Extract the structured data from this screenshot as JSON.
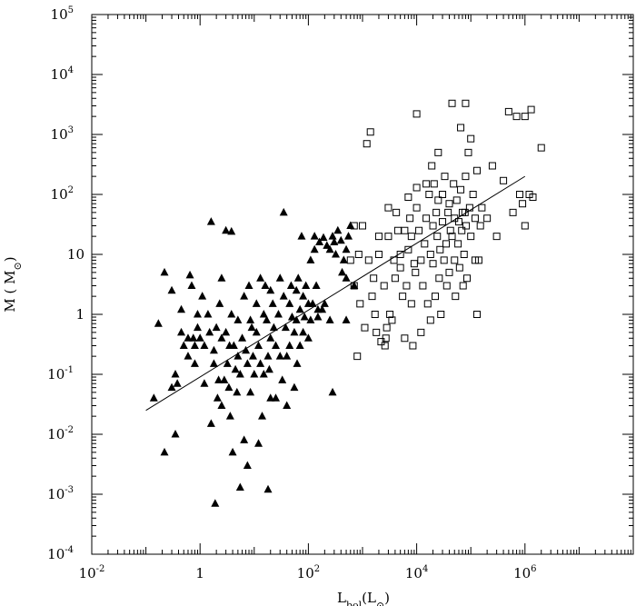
{
  "chart_data": {
    "type": "scatter",
    "title": "",
    "xlabel": "L_bol(L_⊙)",
    "ylabel": "M ( M_⊙)",
    "x_scale": "log",
    "y_scale": "log",
    "xlim": [
      0.01,
      100000000
    ],
    "ylim": [
      0.0001,
      100000
    ],
    "grid": false,
    "legend": "none",
    "x_tick_labels": [
      {
        "base": "10",
        "exp": "-2",
        "value": 0.01
      },
      {
        "base": "1",
        "exp": "",
        "value": 1
      },
      {
        "base": "10",
        "exp": "2",
        "value": 100
      },
      {
        "base": "10",
        "exp": "4",
        "value": 10000
      },
      {
        "base": "10",
        "exp": "6",
        "value": 1000000
      }
    ],
    "y_tick_labels": [
      {
        "base": "10",
        "exp": "-4",
        "value": 0.0001
      },
      {
        "base": "10",
        "exp": "-3",
        "value": 0.001
      },
      {
        "base": "10",
        "exp": "-2",
        "value": 0.01
      },
      {
        "base": "10",
        "exp": "-1",
        "value": 0.1
      },
      {
        "base": "1",
        "exp": "",
        "value": 1
      },
      {
        "base": "10",
        "exp": "",
        "value": 10
      },
      {
        "base": "10",
        "exp": "2",
        "value": 100
      },
      {
        "base": "10",
        "exp": "3",
        "value": 1000
      },
      {
        "base": "10",
        "exp": "4",
        "value": 10000
      },
      {
        "base": "10",
        "exp": "5",
        "value": 100000
      }
    ],
    "fit_line": {
      "x": [
        0.1,
        1000000
      ],
      "y": [
        0.025,
        200
      ]
    },
    "series": [
      {
        "marker": "filled-triangle",
        "color": "#000000",
        "points": [
          [
            0.14,
            0.04
          ],
          [
            0.17,
            0.7
          ],
          [
            0.22,
            5
          ],
          [
            0.22,
            0.005
          ],
          [
            0.3,
            0.06
          ],
          [
            0.3,
            2.5
          ],
          [
            0.35,
            0.1
          ],
          [
            0.35,
            0.01
          ],
          [
            0.38,
            0.07
          ],
          [
            0.45,
            1.2
          ],
          [
            0.45,
            0.5
          ],
          [
            0.5,
            0.3
          ],
          [
            0.6,
            0.4
          ],
          [
            0.6,
            0.2
          ],
          [
            0.65,
            4.5
          ],
          [
            0.7,
            3
          ],
          [
            0.75,
            0.4
          ],
          [
            0.8,
            0.3
          ],
          [
            0.8,
            0.15
          ],
          [
            0.9,
            1
          ],
          [
            0.9,
            0.6
          ],
          [
            1,
            0.4
          ],
          [
            1.1,
            2
          ],
          [
            1.2,
            0.3
          ],
          [
            1.2,
            0.07
          ],
          [
            1.4,
            1
          ],
          [
            1.5,
            0.5
          ],
          [
            1.6,
            35
          ],
          [
            1.6,
            0.015
          ],
          [
            1.8,
            0.25
          ],
          [
            1.8,
            0.15
          ],
          [
            1.9,
            0.0007
          ],
          [
            2,
            0.6
          ],
          [
            2.1,
            0.04
          ],
          [
            2.2,
            0.08
          ],
          [
            2.3,
            1.5
          ],
          [
            2.5,
            4
          ],
          [
            2.5,
            0.03
          ],
          [
            2.5,
            0.4
          ],
          [
            2.8,
            0.08
          ],
          [
            3,
            25
          ],
          [
            3,
            0.5
          ],
          [
            3.2,
            0.15
          ],
          [
            3.4,
            0.06
          ],
          [
            3.5,
            0.3
          ],
          [
            3.6,
            0.02
          ],
          [
            3.8,
            24
          ],
          [
            3.8,
            1
          ],
          [
            4,
            0.005
          ],
          [
            4.2,
            0.3
          ],
          [
            4.5,
            0.12
          ],
          [
            4.8,
            0.05
          ],
          [
            5,
            0.8
          ],
          [
            5,
            0.2
          ],
          [
            5.5,
            0.1
          ],
          [
            5.5,
            0.0013
          ],
          [
            6,
            0.4
          ],
          [
            6.5,
            2
          ],
          [
            6.5,
            0.008
          ],
          [
            7,
            0.25
          ],
          [
            7.5,
            0.003
          ],
          [
            7.5,
            0.15
          ],
          [
            8,
            3
          ],
          [
            8.5,
            0.8
          ],
          [
            8.5,
            0.05
          ],
          [
            9,
            0.6
          ],
          [
            9.5,
            0.2
          ],
          [
            10,
            0.1
          ],
          [
            11,
            0.5
          ],
          [
            11,
            1.5
          ],
          [
            12,
            0.3
          ],
          [
            12,
            0.007
          ],
          [
            13,
            4
          ],
          [
            13,
            0.15
          ],
          [
            14,
            0.02
          ],
          [
            15,
            1
          ],
          [
            15,
            0.1
          ],
          [
            16,
            3
          ],
          [
            17,
            0.8
          ],
          [
            18,
            0.2
          ],
          [
            18,
            0.0012
          ],
          [
            19,
            0.12
          ],
          [
            20,
            2.5
          ],
          [
            20,
            0.4
          ],
          [
            20,
            0.04
          ],
          [
            22,
            1.5
          ],
          [
            23,
            0.6
          ],
          [
            25,
            0.3
          ],
          [
            25,
            0.04
          ],
          [
            28,
            1
          ],
          [
            30,
            4
          ],
          [
            30,
            0.2
          ],
          [
            33,
            0.08
          ],
          [
            35,
            50
          ],
          [
            35,
            2
          ],
          [
            38,
            0.6
          ],
          [
            40,
            0.2
          ],
          [
            40,
            0.03
          ],
          [
            45,
            1.5
          ],
          [
            45,
            0.3
          ],
          [
            48,
            3
          ],
          [
            50,
            0.9
          ],
          [
            55,
            0.5
          ],
          [
            55,
            0.06
          ],
          [
            60,
            2.5
          ],
          [
            60,
            0.8
          ],
          [
            62,
            0.15
          ],
          [
            65,
            4
          ],
          [
            70,
            1.2
          ],
          [
            70,
            0.3
          ],
          [
            75,
            20
          ],
          [
            80,
            2
          ],
          [
            80,
            0.5
          ],
          [
            85,
            0.9
          ],
          [
            90,
            3
          ],
          [
            100,
            1.5
          ],
          [
            100,
            0.4
          ],
          [
            110,
            8
          ],
          [
            110,
            0.8
          ],
          [
            120,
            1.5
          ],
          [
            130,
            20
          ],
          [
            130,
            12
          ],
          [
            140,
            3
          ],
          [
            150,
            0.9
          ],
          [
            150,
            1.2
          ],
          [
            160,
            16
          ],
          [
            180,
            1.2
          ],
          [
            190,
            19
          ],
          [
            200,
            1.5
          ],
          [
            220,
            14
          ],
          [
            250,
            0.8
          ],
          [
            250,
            12
          ],
          [
            280,
            20
          ],
          [
            280,
            0.05
          ],
          [
            300,
            16
          ],
          [
            320,
            10
          ],
          [
            350,
            25
          ],
          [
            400,
            17
          ],
          [
            420,
            5
          ],
          [
            450,
            8
          ],
          [
            500,
            12
          ],
          [
            500,
            0.8
          ],
          [
            500,
            4
          ],
          [
            550,
            20
          ],
          [
            600,
            30
          ],
          [
            700,
            3
          ]
        ]
      },
      {
        "marker": "open-square",
        "color": "#000000",
        "points": [
          [
            600,
            8
          ],
          [
            700,
            30
          ],
          [
            700,
            3
          ],
          [
            800,
            0.2
          ],
          [
            850,
            10
          ],
          [
            900,
            1.5
          ],
          [
            1000,
            30
          ],
          [
            1100,
            0.6
          ],
          [
            1200,
            700
          ],
          [
            1300,
            8
          ],
          [
            1400,
            1100
          ],
          [
            1500,
            2
          ],
          [
            1600,
            4
          ],
          [
            1700,
            1
          ],
          [
            1800,
            0.5
          ],
          [
            2000,
            20
          ],
          [
            2000,
            10
          ],
          [
            2200,
            0.35
          ],
          [
            2500,
            3
          ],
          [
            2600,
            0.3
          ],
          [
            2700,
            0.4
          ],
          [
            2800,
            0.6
          ],
          [
            3000,
            60
          ],
          [
            3000,
            20
          ],
          [
            3200,
            1
          ],
          [
            3500,
            0.8
          ],
          [
            3800,
            8
          ],
          [
            4000,
            4
          ],
          [
            4200,
            50
          ],
          [
            4500,
            25
          ],
          [
            5000,
            10
          ],
          [
            5000,
            6
          ],
          [
            5500,
            2
          ],
          [
            6000,
            25
          ],
          [
            6000,
            0.4
          ],
          [
            6500,
            3
          ],
          [
            7000,
            90
          ],
          [
            7000,
            12
          ],
          [
            7500,
            40
          ],
          [
            8000,
            1.5
          ],
          [
            8000,
            20
          ],
          [
            8500,
            0.3
          ],
          [
            9000,
            7
          ],
          [
            9500,
            5
          ],
          [
            10000,
            2200
          ],
          [
            10000,
            130
          ],
          [
            10000,
            60
          ],
          [
            11000,
            25
          ],
          [
            12000,
            0.5
          ],
          [
            12000,
            8
          ],
          [
            13000,
            3
          ],
          [
            14000,
            15
          ],
          [
            15000,
            150
          ],
          [
            15000,
            40
          ],
          [
            16000,
            1.5
          ],
          [
            17000,
            100
          ],
          [
            18000,
            10
          ],
          [
            18000,
            0.8
          ],
          [
            19000,
            300
          ],
          [
            20000,
            7
          ],
          [
            20000,
            30
          ],
          [
            21000,
            150
          ],
          [
            22000,
            2
          ],
          [
            23000,
            50
          ],
          [
            24000,
            20
          ],
          [
            25000,
            500
          ],
          [
            25000,
            80
          ],
          [
            26000,
            4
          ],
          [
            27000,
            12
          ],
          [
            28000,
            1
          ],
          [
            30000,
            100
          ],
          [
            30000,
            35
          ],
          [
            32000,
            8
          ],
          [
            33000,
            200
          ],
          [
            35000,
            15
          ],
          [
            36000,
            3
          ],
          [
            38000,
            50
          ],
          [
            40000,
            70
          ],
          [
            40000,
            5
          ],
          [
            42000,
            25
          ],
          [
            45000,
            3300
          ],
          [
            45000,
            20
          ],
          [
            48000,
            150
          ],
          [
            50000,
            40
          ],
          [
            50000,
            8
          ],
          [
            52000,
            2
          ],
          [
            55000,
            80
          ],
          [
            58000,
            15
          ],
          [
            60000,
            35
          ],
          [
            62000,
            6
          ],
          [
            65000,
            1300
          ],
          [
            65000,
            120
          ],
          [
            68000,
            25
          ],
          [
            70000,
            50
          ],
          [
            72000,
            3
          ],
          [
            75000,
            10
          ],
          [
            78000,
            50
          ],
          [
            80000,
            3300
          ],
          [
            80000,
            200
          ],
          [
            82000,
            30
          ],
          [
            85000,
            4
          ],
          [
            90000,
            500
          ],
          [
            95000,
            60
          ],
          [
            100000,
            20
          ],
          [
            100000,
            850
          ],
          [
            110000,
            100
          ],
          [
            120000,
            40
          ],
          [
            120000,
            8
          ],
          [
            130000,
            1
          ],
          [
            130000,
            250
          ],
          [
            140000,
            8
          ],
          [
            150000,
            30
          ],
          [
            160000,
            60
          ],
          [
            200000,
            40
          ],
          [
            250000,
            300
          ],
          [
            300000,
            20
          ],
          [
            400000,
            170
          ],
          [
            500000,
            2400
          ],
          [
            600000,
            50
          ],
          [
            700000,
            2000
          ],
          [
            800000,
            100
          ],
          [
            900000,
            70
          ],
          [
            1000000,
            30
          ],
          [
            1000000,
            2000
          ],
          [
            1200000,
            100
          ],
          [
            1300000,
            2600
          ],
          [
            1400000,
            90
          ],
          [
            2000000,
            600
          ]
        ]
      }
    ]
  }
}
